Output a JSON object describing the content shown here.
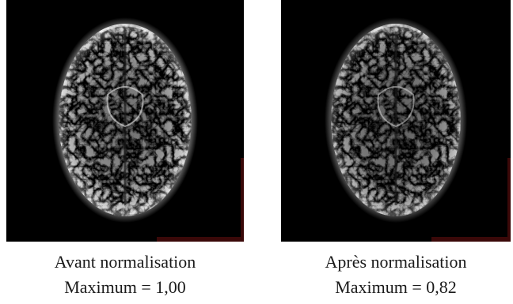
{
  "figure": {
    "panels": [
      {
        "caption": "Avant normalisation",
        "max_label": "Maximum = 1,00",
        "intensity_scale": 1.0
      },
      {
        "caption": "Après normalisation",
        "max_label": "Maximum = 0,82",
        "intensity_scale": 0.82
      }
    ],
    "colors": {
      "background": "#000000",
      "scan": "#ffffff",
      "edge_artifact": "#7a1010",
      "caption_text": "#1a1a1a"
    }
  }
}
